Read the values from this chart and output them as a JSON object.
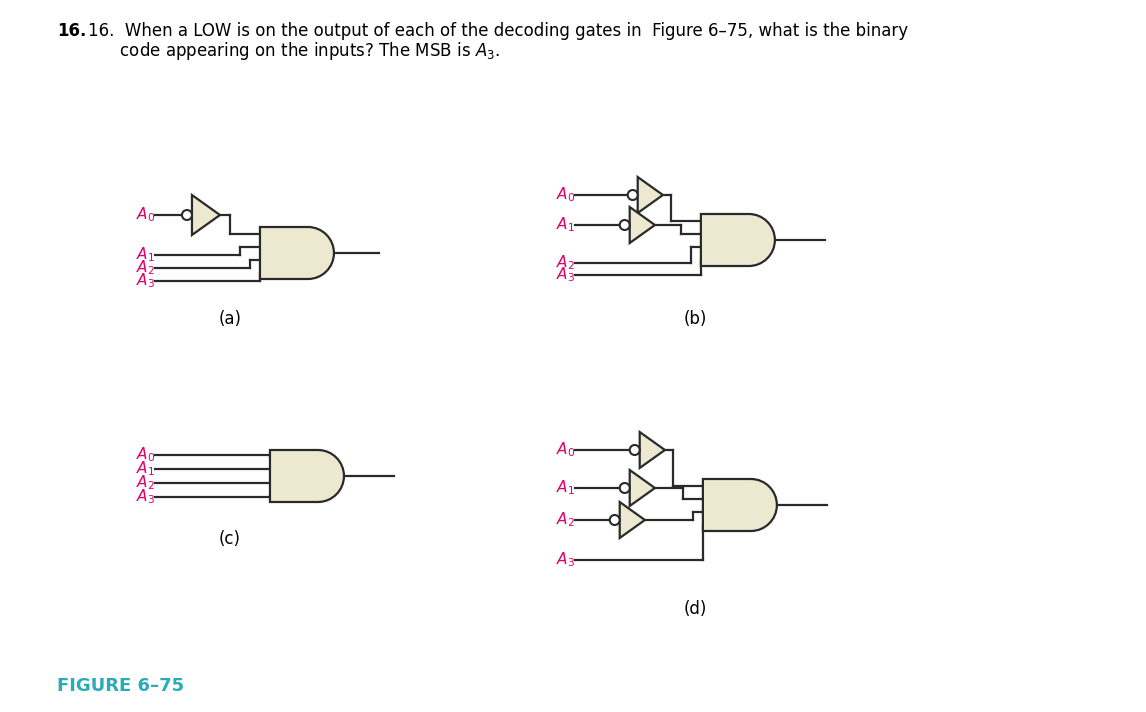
{
  "bg_color": "#FFFFFF",
  "label_color": "#E0006C",
  "figure_label_color": "#29ABB8",
  "gate_fill": "#EDE8D0",
  "gate_edge": "#2A2A2A",
  "line_color": "#2A2A2A",
  "line_width": 1.6,
  "title_line1": "16.  When a LOW is on the output of each of the decoding gates in  Figure 6–75, what is the binary",
  "title_line2": "      code appearing on the inputs? The MSB is $A_3$.",
  "figure_label": "FIGURE 6–75"
}
